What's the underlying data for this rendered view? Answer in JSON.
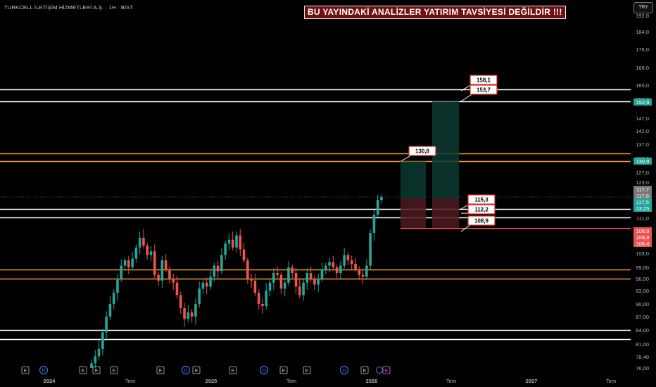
{
  "header": {
    "symbol_title": "TURKCELL İLETİŞİM HİZMETLERİ A.Ş. · 1H · BIST",
    "disclaimer": "BU YAYINDAKİ ANALİZLER YATIRIM TAVSİYESİ DEĞİLDİR !!!",
    "currency_button": "TRY"
  },
  "colors": {
    "background": "#000000",
    "up": "#26a69a",
    "down": "#ef5350",
    "white_level": "#ffffff",
    "orange_level": "#f39c1f",
    "box_green": "#0c3a30",
    "box_red": "#4d1a1f",
    "callout_border": "#d92b2b"
  },
  "chart_data": {
    "type": "candlestick",
    "y_axis": {
      "range": [
        76,
        192
      ],
      "tick_labels": [
        "192,0",
        "184,0",
        "176,0",
        "168,0",
        "160,0",
        "153,7",
        "147,0",
        "142,0",
        "137,0",
        "132,0",
        "127,0",
        "123,0",
        "119,0",
        "115,0",
        "111,0",
        "107,0",
        "103,0",
        "99,00",
        "96,00",
        "93,00",
        "90,00",
        "87,00",
        "84,00",
        "81,00",
        "78,40",
        "76,00"
      ]
    },
    "x_axis": {
      "tick_labels": [
        "2024",
        "Tem",
        "2025",
        "Tem",
        "2026",
        "Tem",
        "2027",
        "Tem"
      ]
    },
    "price_tags": [
      {
        "text": "152,9",
        "value": 152.9,
        "color": "#26a69a"
      },
      {
        "text": "130,9",
        "value": 130.9,
        "color": "#26a69a"
      },
      {
        "text": "117,7",
        "value": 117.7,
        "color": "#787878"
      },
      {
        "text": "117,6",
        "value": 117.6,
        "color": "#787878"
      },
      {
        "text": "117,5",
        "value": 117.5,
        "color": "#26a69a"
      },
      {
        "text": "13:25",
        "value": 116.5,
        "color": "#26a69a"
      },
      {
        "text": "108,9",
        "value": 108.9,
        "color": "#ef5350"
      },
      {
        "text": "108,8",
        "value": 108.8,
        "color": "#ef5350"
      },
      {
        "text": "108,4",
        "value": 108.4,
        "color": "#ef5350"
      }
    ],
    "levels": [
      {
        "value": 158.1,
        "color": "white"
      },
      {
        "value": 152.9,
        "color": "white"
      },
      {
        "value": 130.9,
        "color": "orange"
      },
      {
        "value": 133.8,
        "color": "orange"
      },
      {
        "value": 113.6,
        "color": "white"
      },
      {
        "value": 111.3,
        "color": "white"
      },
      {
        "value": 98.4,
        "color": "orange"
      },
      {
        "value": 96.0,
        "color": "orange"
      },
      {
        "value": 84.0,
        "color": "white"
      },
      {
        "value": 82.0,
        "color": "white"
      }
    ],
    "callouts": [
      {
        "label": "158,1",
        "value": 158.1
      },
      {
        "label": "153,7",
        "value": 153.7
      },
      {
        "label": "130,8",
        "value": 130.8
      },
      {
        "label": "115,3",
        "value": 115.3
      },
      {
        "label": "112,2",
        "value": 112.2
      },
      {
        "label": "108,9",
        "value": 108.9
      }
    ],
    "position_boxes": [
      {
        "profit_top": 130.9,
        "entry": 117.0,
        "stop": 108.9
      },
      {
        "profit_top": 152.9,
        "entry": 117.0,
        "stop": 108.9
      }
    ],
    "series": [
      {
        "name": "",
        "closes": [
          77.0,
          78.5,
          80.0,
          83.5,
          87.0,
          90.0,
          92.5,
          96.0,
          99.5,
          101.0,
          99.0,
          101.5,
          104.5,
          107.0,
          105.0,
          102.5,
          103.5,
          97.0,
          95.5,
          101.0,
          98.5,
          96.0,
          95.0,
          92.0,
          89.0,
          86.5,
          88.0,
          87.0,
          90.0,
          93.5,
          95.0,
          94.0,
          96.5,
          99.5,
          98.0,
          102.5,
          105.5,
          106.5,
          104.5,
          107.5,
          104.0,
          101.0,
          96.0,
          95.5,
          92.5,
          90.0,
          89.5,
          93.0,
          95.0,
          97.5,
          97.0,
          93.5,
          95.0,
          99.0,
          97.5,
          94.0,
          92.0,
          95.0,
          97.5,
          96.0,
          94.5,
          96.0,
          98.5,
          99.5,
          100.5,
          99.0,
          97.5,
          99.5,
          102.5,
          101.0,
          100.0,
          98.5,
          97.0,
          96.5,
          99.5,
          108.0,
          112.0,
          116.5,
          117.5
        ]
      }
    ],
    "markers": [
      "E",
      "D",
      "E",
      "E",
      "E",
      "E",
      "D",
      "E",
      "E",
      "D",
      "E",
      "E",
      "D",
      "E"
    ]
  }
}
